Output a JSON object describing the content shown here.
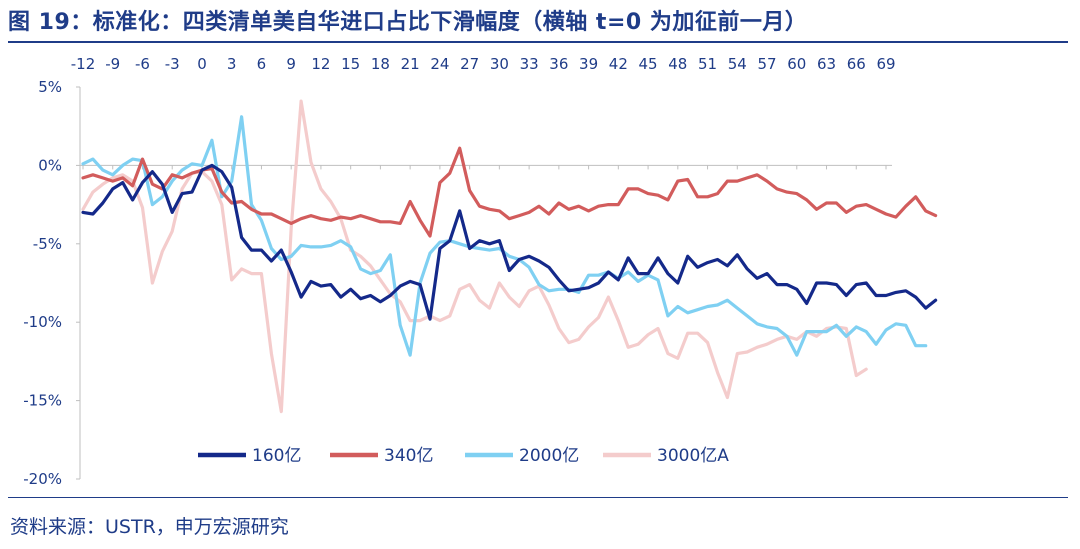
{
  "title": "图 19：标准化：四类清单美自华进口占比下滑幅度（横轴 t=0 为加征前一月）",
  "source": "资料来源：USTR，申万宏源研究",
  "chart_data": {
    "type": "line",
    "x_ticks": [
      "-12",
      "-9",
      "-6",
      "-3",
      "0",
      "3",
      "6",
      "9",
      "12",
      "15",
      "18",
      "21",
      "24",
      "27",
      "30",
      "33",
      "36",
      "39",
      "42",
      "45",
      "48",
      "51",
      "54",
      "57",
      "60",
      "63",
      "66",
      "69"
    ],
    "y_ticks": [
      "5%",
      "0%",
      "-5%",
      "-10%",
      "-15%",
      "-20%"
    ],
    "ylim": [
      -20,
      5
    ],
    "xlim": [
      -12,
      69
    ],
    "legend_position": "bottom-center",
    "series": [
      {
        "name": "160亿",
        "color": "#14298a",
        "x_start": -12,
        "values": [
          -3.0,
          -3.1,
          -2.4,
          -1.5,
          -1.1,
          -2.2,
          -1.1,
          -0.4,
          -1.2,
          -3.0,
          -1.8,
          -1.7,
          -0.3,
          0.0,
          -0.4,
          -1.4,
          -4.6,
          -5.4,
          -5.4,
          -6.1,
          -5.4,
          -6.8,
          -8.4,
          -7.4,
          -7.7,
          -7.6,
          -8.4,
          -7.9,
          -8.5,
          -8.3,
          -8.7,
          -8.3,
          -7.7,
          -7.4,
          -7.6,
          -9.8,
          -5.3,
          -4.8,
          -2.9,
          -5.3,
          -4.8,
          -5.0,
          -4.8,
          -6.7,
          -6.0,
          -5.8,
          -6.1,
          -6.5,
          -7.3,
          -8.0,
          -7.9,
          -7.8,
          -7.5,
          -6.8,
          -7.3,
          -5.9,
          -6.9,
          -6.9,
          -5.9,
          -6.9,
          -7.5,
          -5.8,
          -6.5,
          -6.2,
          -6.0,
          -6.4,
          -5.7,
          -6.6,
          -7.2,
          -6.9,
          -7.6,
          -7.6,
          -7.9,
          -8.8,
          -7.5,
          -7.5,
          -7.6,
          -8.3,
          -7.6,
          -7.5,
          -8.3,
          -8.3,
          -8.1,
          -8.0,
          -8.4,
          -9.1,
          -8.6
        ]
      },
      {
        "name": "340亿",
        "color": "#d25c5c",
        "x_start": -12,
        "values": [
          -0.8,
          -0.6,
          -0.8,
          -1.0,
          -0.8,
          -1.3,
          0.4,
          -1.2,
          -1.5,
          -0.6,
          -0.8,
          -0.5,
          -0.3,
          -0.2,
          -1.7,
          -2.4,
          -2.3,
          -2.8,
          -3.1,
          -3.1,
          -3.4,
          -3.7,
          -3.4,
          -3.2,
          -3.4,
          -3.5,
          -3.3,
          -3.4,
          -3.2,
          -3.4,
          -3.6,
          -3.6,
          -3.7,
          -2.3,
          -3.5,
          -4.5,
          -1.1,
          -0.5,
          1.1,
          -1.6,
          -2.6,
          -2.8,
          -2.9,
          -3.4,
          -3.2,
          -3.0,
          -2.6,
          -3.1,
          -2.4,
          -2.8,
          -2.6,
          -2.9,
          -2.6,
          -2.5,
          -2.5,
          -1.5,
          -1.5,
          -1.8,
          -1.9,
          -2.2,
          -1.0,
          -0.9,
          -2.0,
          -2.0,
          -1.8,
          -1.0,
          -1.0,
          -0.8,
          -0.6,
          -1.0,
          -1.5,
          -1.7,
          -1.8,
          -2.2,
          -2.8,
          -2.4,
          -2.4,
          -3.0,
          -2.6,
          -2.5,
          -2.8,
          -3.1,
          -3.3,
          -2.6,
          -2.0,
          -2.9,
          -3.2
        ]
      },
      {
        "name": "2000亿",
        "color": "#7fd0f2",
        "x_start": -12,
        "values": [
          0.1,
          0.4,
          -0.3,
          -0.6,
          0.0,
          0.4,
          0.3,
          -2.5,
          -2.0,
          -1.0,
          -0.3,
          0.1,
          0.0,
          1.6,
          -2.0,
          -1.0,
          3.1,
          -2.5,
          -3.5,
          -5.3,
          -6.0,
          -5.8,
          -5.1,
          -5.2,
          -5.2,
          -5.1,
          -4.8,
          -5.2,
          -6.6,
          -6.9,
          -6.7,
          -5.7,
          -10.2,
          -12.1,
          -7.5,
          -5.6,
          -4.9,
          -4.8,
          -5.0,
          -5.2,
          -5.3,
          -5.4,
          -5.3,
          -5.8,
          -6.0,
          -6.5,
          -7.6,
          -8.0,
          -7.9,
          -7.9,
          -8.1,
          -7.0,
          -7.0,
          -6.8,
          -7.2,
          -6.8,
          -7.4,
          -7.0,
          -7.3,
          -9.6,
          -9.0,
          -9.4,
          -9.2,
          -9.0,
          -8.9,
          -8.6,
          -9.1,
          -9.6,
          -10.1,
          -10.3,
          -10.4,
          -10.9,
          -12.1,
          -10.6,
          -10.6,
          -10.6,
          -10.2,
          -10.9,
          -10.3,
          -10.6,
          -11.4,
          -10.5,
          -10.1,
          -10.2,
          -11.5,
          -11.5
        ]
      },
      {
        "name": "3000亿A",
        "color": "#f4cccc",
        "x_start": -12,
        "values": [
          -2.8,
          -1.7,
          -1.2,
          -0.8,
          -0.6,
          -1.0,
          -2.7,
          -7.5,
          -5.5,
          -4.2,
          -1.5,
          -0.5,
          -0.4,
          -1.0,
          -2.5,
          -7.3,
          -6.6,
          -6.9,
          -6.9,
          -12.0,
          -15.7,
          -4.0,
          4.1,
          0.2,
          -1.5,
          -2.3,
          -3.4,
          -5.4,
          -5.8,
          -6.4,
          -7.3,
          -8.2,
          -8.7,
          -9.9,
          -9.9,
          -9.6,
          -9.9,
          -9.6,
          -7.9,
          -7.6,
          -8.6,
          -9.1,
          -7.5,
          -8.4,
          -9.0,
          -8.0,
          -7.7,
          -8.9,
          -10.4,
          -11.3,
          -11.1,
          -10.3,
          -9.7,
          -8.4,
          -9.9,
          -11.6,
          -11.4,
          -10.8,
          -10.4,
          -12.0,
          -12.3,
          -10.7,
          -10.7,
          -11.3,
          -13.2,
          -14.8,
          -12.0,
          -11.9,
          -11.6,
          -11.4,
          -11.1,
          -10.9,
          -11.1,
          -10.6,
          -10.9,
          -10.4,
          -10.3,
          -10.4,
          -13.4,
          -13.0
        ]
      }
    ]
  }
}
